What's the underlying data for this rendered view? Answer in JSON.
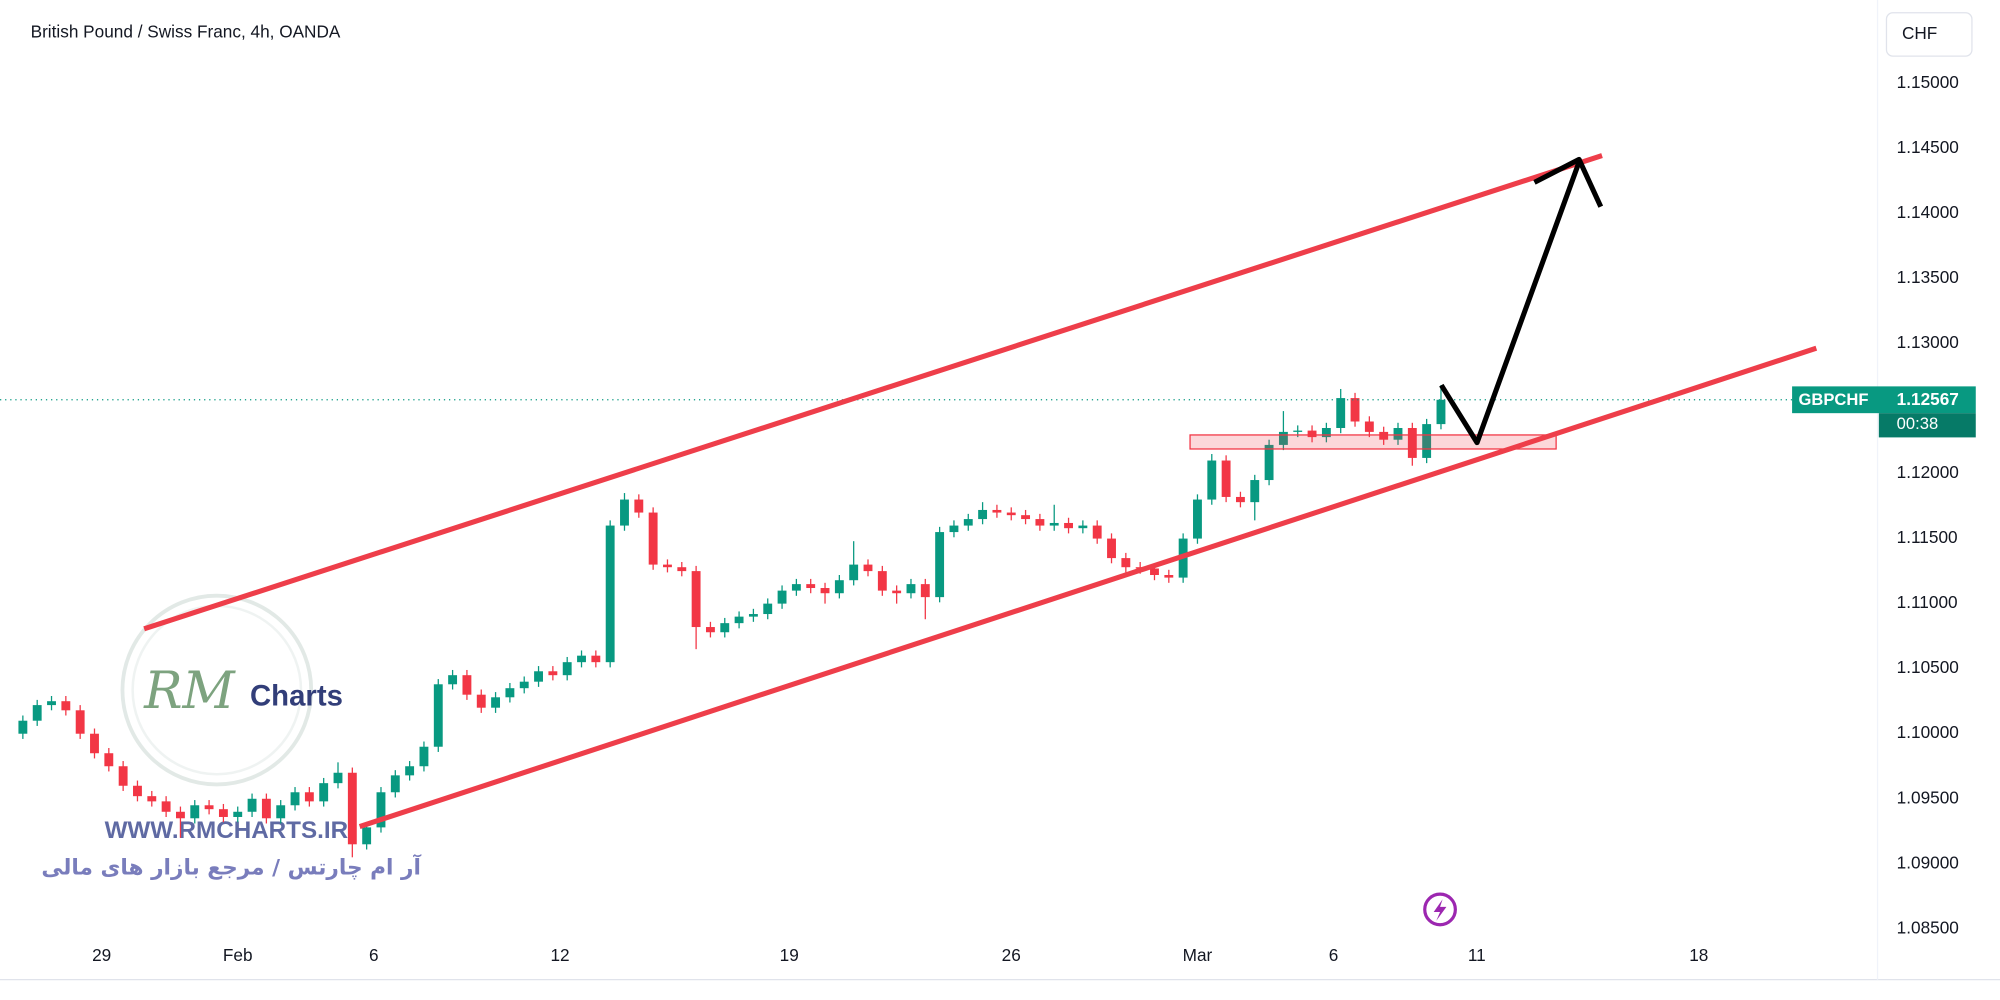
{
  "chart_data": {
    "type": "candlestick",
    "title": "British Pound / Swiss Franc, 4h, OANDA",
    "currency": "CHF",
    "symbol": "GBPCHF",
    "countdown": "00:38",
    "up_color": "#089981",
    "down_color": "#f23645",
    "grid": false,
    "open": [
      1.1,
      1.101,
      1.1022,
      1.1025,
      1.1018,
      1.1,
      1.0985,
      1.0975,
      1.096,
      1.0952,
      1.0948,
      1.094,
      1.0935,
      1.0945,
      1.0942,
      1.0936,
      1.094,
      1.095,
      1.0935,
      1.0945,
      1.0955,
      1.0948,
      1.0962,
      1.097,
      1.0915,
      1.0928,
      1.0955,
      1.0968,
      1.0975,
      1.099,
      1.1038,
      1.1045,
      1.103,
      1.102,
      1.1028,
      1.1035,
      1.104,
      1.1048,
      1.1045,
      1.1055,
      1.106,
      1.1055,
      1.116,
      1.118,
      1.117,
      1.113,
      1.1128,
      1.1125,
      1.1082,
      1.1078,
      1.1085,
      1.109,
      1.1092,
      1.11,
      1.111,
      1.1115,
      1.1112,
      1.1108,
      1.1118,
      1.113,
      1.1125,
      1.111,
      1.1108,
      1.1115,
      1.1105,
      1.1155,
      1.116,
      1.1165,
      1.1172,
      1.117,
      1.1168,
      1.1165,
      1.116,
      1.1162,
      1.1158,
      1.116,
      1.115,
      1.1135,
      1.1128,
      1.1127,
      1.1122,
      1.112,
      1.115,
      1.118,
      1.121,
      1.1182,
      1.1178,
      1.1195,
      1.1222,
      1.1232,
      1.1233,
      1.1228,
      1.1235,
      1.1258,
      1.124,
      1.1232,
      1.1226,
      1.1235,
      1.1212,
      1.1238
    ],
    "high": [
      1.1014,
      1.1026,
      1.1029,
      1.1029,
      1.1022,
      1.1004,
      1.0989,
      1.0979,
      1.0964,
      1.0956,
      1.0952,
      1.0944,
      1.0949,
      1.0949,
      1.0946,
      1.0944,
      1.0954,
      1.0954,
      1.0949,
      1.0959,
      1.0959,
      1.0966,
      1.0978,
      1.0974,
      1.0932,
      1.0959,
      1.0972,
      1.0979,
      1.0994,
      1.1042,
      1.1049,
      1.1049,
      1.1034,
      1.1032,
      1.1039,
      1.1044,
      1.1052,
      1.1052,
      1.1059,
      1.1064,
      1.1064,
      1.1164,
      1.1185,
      1.1184,
      1.1174,
      1.1134,
      1.1132,
      1.1129,
      1.1086,
      1.1089,
      1.1094,
      1.1096,
      1.1104,
      1.1114,
      1.1119,
      1.1119,
      1.1116,
      1.1122,
      1.1148,
      1.1134,
      1.1129,
      1.1114,
      1.1119,
      1.1119,
      1.1159,
      1.1164,
      1.1169,
      1.1178,
      1.1176,
      1.1174,
      1.1172,
      1.1169,
      1.1176,
      1.1166,
      1.1164,
      1.1164,
      1.1154,
      1.1139,
      1.1132,
      1.1131,
      1.1126,
      1.1154,
      1.1184,
      1.1215,
      1.1214,
      1.1186,
      1.1199,
      1.1226,
      1.1248,
      1.1237,
      1.1237,
      1.1239,
      1.1265,
      1.1262,
      1.1244,
      1.1236,
      1.1239,
      1.1239,
      1.1242,
      1.1268
    ],
    "low": [
      1.0996,
      1.1006,
      1.1018,
      1.1014,
      1.0996,
      1.0981,
      1.0971,
      1.0956,
      1.0948,
      1.0944,
      1.0936,
      1.092,
      1.0931,
      1.0938,
      1.0932,
      1.0932,
      1.0936,
      1.0931,
      1.0931,
      1.0941,
      1.0944,
      1.0944,
      1.0958,
      1.0905,
      1.0911,
      1.0924,
      1.0951,
      1.0964,
      1.0971,
      1.0986,
      1.1034,
      1.1026,
      1.1016,
      1.1016,
      1.1024,
      1.1031,
      1.1036,
      1.1041,
      1.1041,
      1.1051,
      1.1051,
      1.1051,
      1.1156,
      1.1166,
      1.1126,
      1.1124,
      1.1121,
      1.1065,
      1.1074,
      1.1074,
      1.1081,
      1.1086,
      1.1088,
      1.1096,
      1.1106,
      1.1108,
      1.11,
      1.1104,
      1.1114,
      1.1121,
      1.1106,
      1.11,
      1.1104,
      1.1088,
      1.1101,
      1.1151,
      1.1156,
      1.1161,
      1.1166,
      1.1164,
      1.1161,
      1.1156,
      1.1156,
      1.1154,
      1.1154,
      1.1146,
      1.1131,
      1.1124,
      1.1123,
      1.1118,
      1.1116,
      1.1116,
      1.1146,
      1.1176,
      1.1178,
      1.1174,
      1.1164,
      1.1191,
      1.1218,
      1.1228,
      1.1224,
      1.1224,
      1.1231,
      1.1236,
      1.1228,
      1.1222,
      1.1222,
      1.1206,
      1.1208,
      1.1234
    ],
    "close": [
      1.101,
      1.1022,
      1.1025,
      1.1018,
      1.1,
      1.0985,
      1.0975,
      1.096,
      1.0952,
      1.0948,
      1.094,
      1.0935,
      1.0945,
      1.0942,
      1.0936,
      1.094,
      1.095,
      1.0935,
      1.0945,
      1.0955,
      1.0948,
      1.0962,
      1.097,
      1.0915,
      1.0928,
      1.0955,
      1.0968,
      1.0975,
      1.099,
      1.1038,
      1.1045,
      1.103,
      1.102,
      1.1028,
      1.1035,
      1.104,
      1.1048,
      1.1045,
      1.1055,
      1.106,
      1.1055,
      1.116,
      1.118,
      1.117,
      1.113,
      1.1128,
      1.1125,
      1.1082,
      1.1078,
      1.1085,
      1.109,
      1.1092,
      1.11,
      1.111,
      1.1115,
      1.1112,
      1.1108,
      1.1118,
      1.113,
      1.1125,
      1.111,
      1.1108,
      1.1115,
      1.1105,
      1.1155,
      1.116,
      1.1165,
      1.1172,
      1.117,
      1.1168,
      1.1165,
      1.116,
      1.1162,
      1.1158,
      1.116,
      1.115,
      1.1135,
      1.1128,
      1.1127,
      1.1122,
      1.112,
      1.115,
      1.118,
      1.121,
      1.1182,
      1.1178,
      1.1195,
      1.1222,
      1.1232,
      1.1233,
      1.1228,
      1.1235,
      1.1258,
      1.124,
      1.1232,
      1.1226,
      1.1235,
      1.1212,
      1.1238,
      1.12567
    ],
    "xlim": [
      -0.35,
      129.3
    ],
    "xticks": [
      {
        "value": 5.5,
        "label": "29"
      },
      {
        "value": 15,
        "label": "Feb"
      },
      {
        "value": 24.5,
        "label": "6"
      },
      {
        "value": 37.5,
        "label": "12"
      },
      {
        "value": 53.5,
        "label": "19"
      },
      {
        "value": 69,
        "label": "26"
      },
      {
        "value": 82,
        "label": "Mar"
      },
      {
        "value": 91.5,
        "label": "6"
      },
      {
        "value": 101.5,
        "label": "11"
      },
      {
        "value": 117,
        "label": "18"
      }
    ],
    "ylim": [
      1.0811,
      1.1564
    ],
    "yticks": [
      {
        "value": 1.085,
        "label": "1.08500"
      },
      {
        "value": 1.09,
        "label": "1.09000"
      },
      {
        "value": 1.095,
        "label": "1.09500"
      },
      {
        "value": 1.1,
        "label": "1.10000"
      },
      {
        "value": 1.105,
        "label": "1.10500"
      },
      {
        "value": 1.11,
        "label": "1.11000"
      },
      {
        "value": 1.115,
        "label": "1.11500"
      },
      {
        "value": 1.12,
        "label": "1.12000"
      },
      {
        "value": 1.125,
        "label": "1.12500"
      },
      {
        "value": 1.13,
        "label": "1.13000"
      },
      {
        "value": 1.135,
        "label": "1.13500"
      },
      {
        "value": 1.14,
        "label": "1.14000"
      },
      {
        "value": 1.145,
        "label": "1.14500"
      },
      {
        "value": 1.15,
        "label": "1.15000"
      }
    ]
  },
  "watermark": {
    "logo_mark": "RM",
    "logo_text": "Charts",
    "url": "WWW.RMCHARTS.IR",
    "tagline": "آر ام چارتس / مرجع بازار های مالی"
  }
}
